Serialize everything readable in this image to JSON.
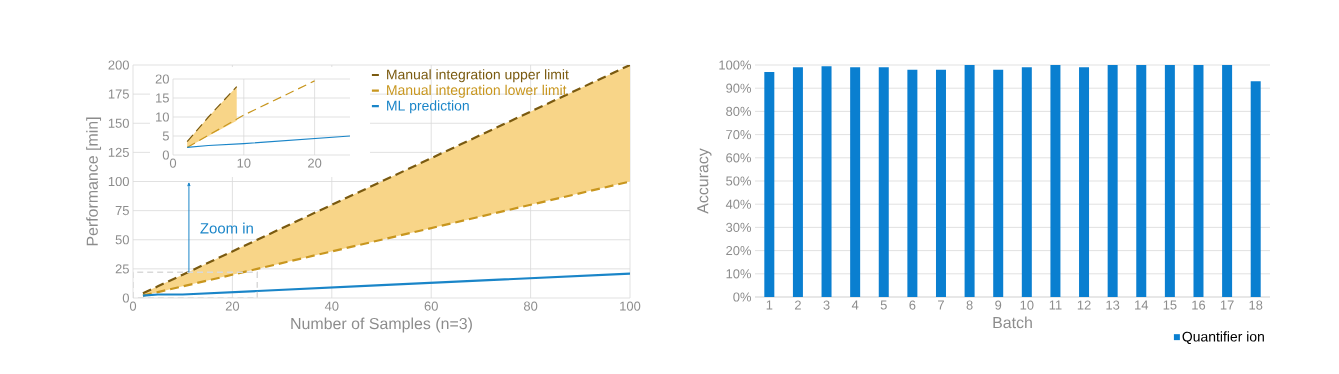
{
  "chart_data": [
    {
      "type": "line",
      "xlabel": "Number of Samples (n=3)",
      "ylabel": "Performance [min]",
      "xlim": [
        0,
        100
      ],
      "ylim": [
        0,
        200
      ],
      "xticks": [
        0,
        20,
        40,
        60,
        80,
        100
      ],
      "yticks": [
        0,
        25,
        50,
        75,
        100,
        125,
        150,
        175,
        200
      ],
      "grid": true,
      "legend": "top",
      "annotations": [
        "Zoom in"
      ],
      "series": [
        {
          "name": "Manual integration upper limit",
          "color": "#7a5a10",
          "line_style": "dashed",
          "x": [
            2,
            5,
            10,
            25,
            50,
            100
          ],
          "values": [
            4,
            10,
            20,
            50,
            100,
            200
          ],
          "lower": [
            2,
            5,
            10,
            25,
            50,
            100
          ],
          "upper": [
            4,
            10,
            20,
            50,
            100,
            200
          ]
        },
        {
          "name": "Manual integration lower limit",
          "color": "#c8961e",
          "line_style": "dashed",
          "x": [
            2,
            5,
            10,
            25,
            50,
            100
          ],
          "values": [
            2,
            5,
            10,
            25,
            50,
            100
          ]
        },
        {
          "name": "ML prediction",
          "color": "#1a85c8",
          "line_style": "solid",
          "x": [
            2,
            5,
            10,
            25,
            50,
            100
          ],
          "values": [
            2,
            3,
            3,
            6,
            11,
            21
          ]
        }
      ]
    },
    {
      "type": "line",
      "xlim": [
        0,
        25
      ],
      "ylim": [
        0,
        20
      ],
      "xticks": [
        0,
        10,
        20
      ],
      "yticks": [
        0,
        5,
        10,
        15,
        20
      ],
      "grid": true,
      "series": [
        {
          "color": "#7a5a10",
          "line_style": "dashed",
          "x": [
            2,
            5,
            9
          ],
          "values": [
            3.5,
            10,
            18
          ],
          "lower": [
            2,
            5,
            9
          ],
          "upper": [
            3.5,
            10,
            18
          ]
        },
        {
          "color": "#c8961e",
          "line_style": "dashed",
          "x": [
            2,
            10,
            20
          ],
          "values": [
            2,
            10.5,
            19.5
          ]
        },
        {
          "color": "#1a85c8",
          "line_style": "solid",
          "x": [
            2,
            5,
            10,
            25
          ],
          "values": [
            2,
            2.5,
            3,
            5
          ]
        }
      ]
    },
    {
      "type": "bar",
      "xlabel": "Batch",
      "ylabel": "Accuracy",
      "categories": [
        "1",
        "2",
        "3",
        "4",
        "5",
        "6",
        "7",
        "8",
        "9",
        "10",
        "11",
        "12",
        "13",
        "14",
        "15",
        "16",
        "17",
        "18"
      ],
      "ylim": [
        0,
        100
      ],
      "yticks": [
        {
          "value": 0,
          "label": "0%"
        },
        {
          "value": 10,
          "label": "10%"
        },
        {
          "value": 20,
          "label": "20%"
        },
        {
          "value": 30,
          "label": "30%"
        },
        {
          "value": 40,
          "label": "40%"
        },
        {
          "value": 50,
          "label": "50%"
        },
        {
          "value": 60,
          "label": "60%"
        },
        {
          "value": 70,
          "label": "70%"
        },
        {
          "value": 80,
          "label": "80%"
        },
        {
          "value": 90,
          "label": "90%"
        },
        {
          "value": 100,
          "label": "100%"
        }
      ],
      "grid": "y",
      "legend": "bottom right",
      "series": [
        {
          "name": "Quantifier ion",
          "color": "#0a7fd0",
          "values": [
            97,
            99,
            99.5,
            99,
            99,
            98,
            98,
            100,
            98,
            99,
            100,
            99,
            100,
            100,
            100,
            100,
            100,
            93
          ]
        }
      ]
    }
  ]
}
